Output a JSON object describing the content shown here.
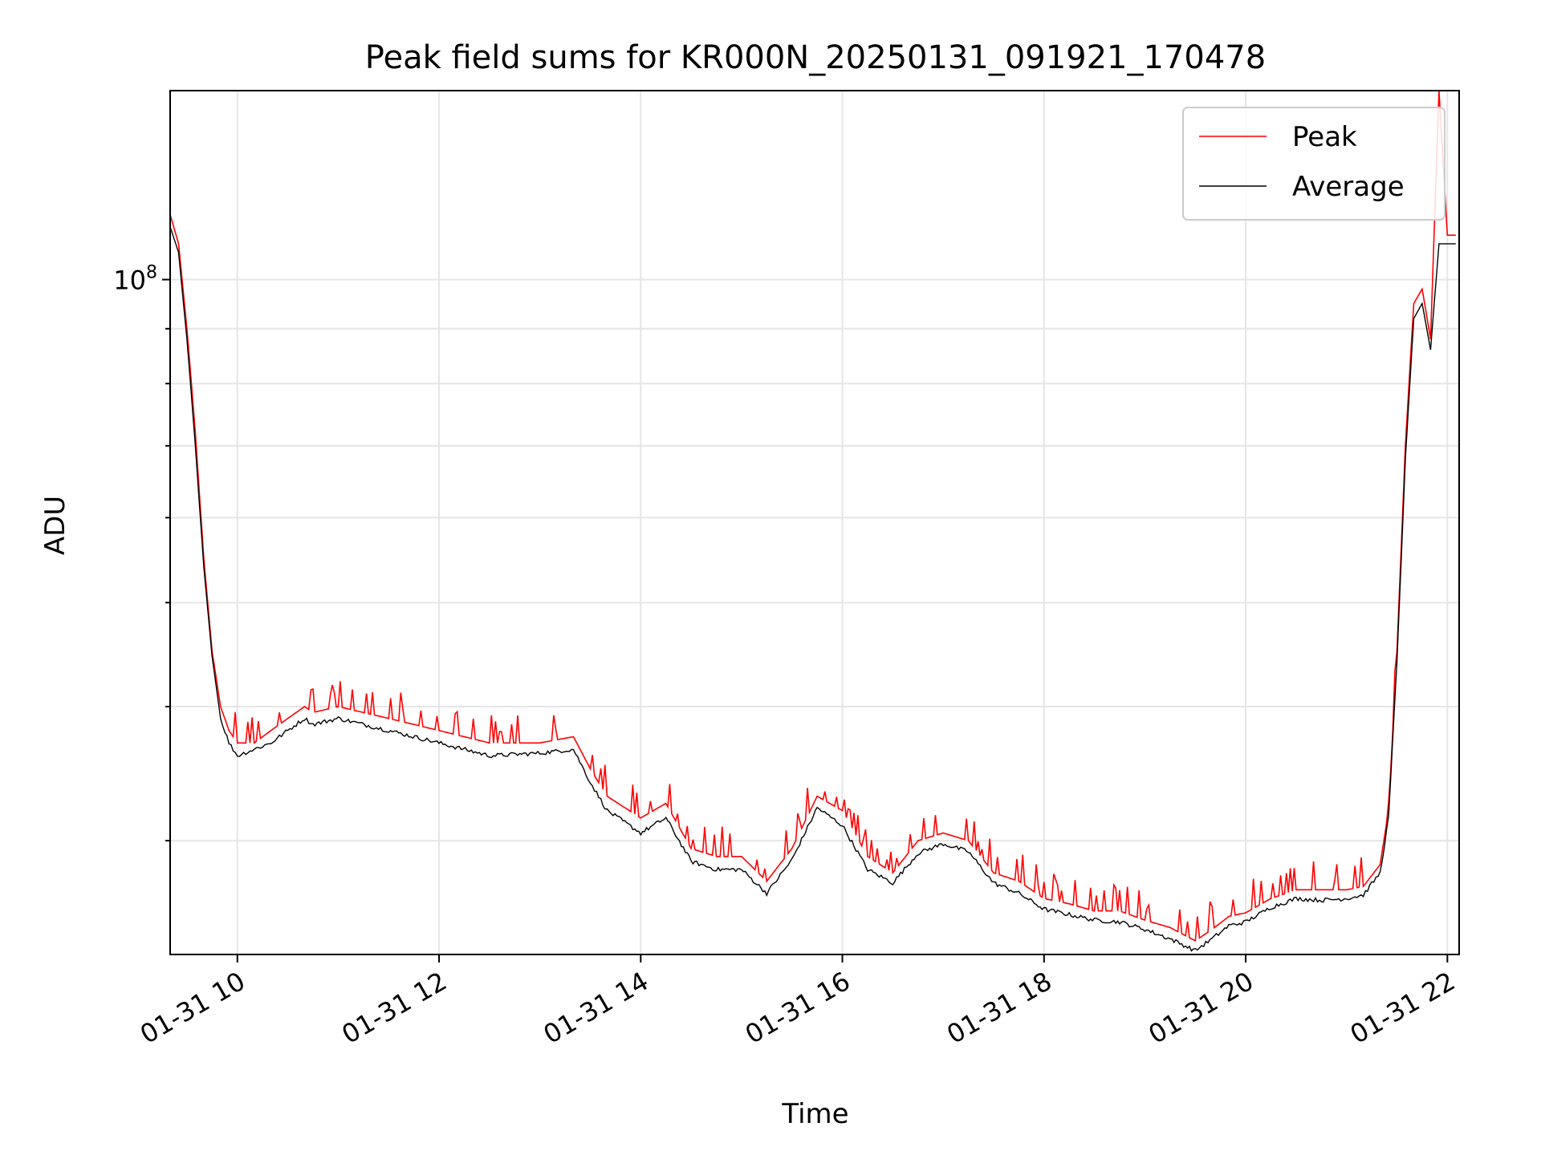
{
  "chart_data": {
    "type": "line",
    "title": "Peak field sums for KR000N_20250131_091921_170478",
    "xlabel": "Time",
    "ylabel": "ADU",
    "yscale": "log",
    "xlim": [
      "01-31 09:20",
      "01-31 22:07"
    ],
    "ylim": [
      23500000,
      150000000
    ],
    "grid": true,
    "legend_position": "top-right",
    "x_ticks": [
      "01-31 10",
      "01-31 12",
      "01-31 14",
      "01-31 16",
      "01-31 18",
      "01-31 20",
      "01-31 22"
    ],
    "y_ticks": [
      {
        "base": "10",
        "exp": "8",
        "value": 100000000
      }
    ],
    "series": [
      {
        "name": "Peak",
        "color": "#ff0000",
        "x": [
          "01-31 09:20",
          "01-31 09:25",
          "01-31 09:30",
          "01-31 09:35",
          "01-31 09:40",
          "01-31 09:45",
          "01-31 09:50",
          "01-31 09:55",
          "01-31 10:00",
          "01-31 10:10",
          "01-31 10:20",
          "01-31 10:30",
          "01-31 10:40",
          "01-31 10:45",
          "01-31 11:00",
          "01-31 11:30",
          "01-31 12:00",
          "01-31 12:30",
          "01-31 13:00",
          "01-31 13:20",
          "01-31 13:30",
          "01-31 13:40",
          "01-31 14:00",
          "01-31 14:15",
          "01-31 14:30",
          "01-31 14:45",
          "01-31 15:00",
          "01-31 15:15",
          "01-31 15:30",
          "01-31 15:45",
          "01-31 16:00",
          "01-31 16:15",
          "01-31 16:30",
          "01-31 16:45",
          "01-31 17:00",
          "01-31 17:15",
          "01-31 17:30",
          "01-31 17:45",
          "01-31 18:00",
          "01-31 18:15",
          "01-31 18:30",
          "01-31 18:45",
          "01-31 19:00",
          "01-31 19:15",
          "01-31 19:30",
          "01-31 19:40",
          "01-31 19:50",
          "01-31 20:00",
          "01-31 20:15",
          "01-31 20:30",
          "01-31 20:45",
          "01-31 21:00",
          "01-31 21:10",
          "01-31 21:20",
          "01-31 21:25",
          "01-31 21:30",
          "01-31 21:35",
          "01-31 21:40",
          "01-31 21:45",
          "01-31 21:50",
          "01-31 21:55",
          "01-31 22:00",
          "01-31 22:05"
        ],
        "values": [
          115000000,
          108000000,
          90000000,
          72000000,
          55000000,
          45000000,
          40000000,
          38000000,
          37000000,
          37000000,
          38000000,
          39000000,
          40000000,
          39500000,
          40000000,
          39000000,
          38000000,
          37000000,
          37000000,
          37500000,
          35000000,
          33000000,
          31500000,
          32500000,
          29500000,
          29000000,
          29000000,
          27500000,
          29500000,
          33000000,
          32000000,
          29000000,
          28000000,
          30000000,
          30500000,
          30000000,
          28000000,
          27500000,
          26500000,
          26200000,
          25800000,
          25800000,
          25300000,
          24900000,
          24200000,
          24800000,
          25500000,
          25700000,
          26500000,
          27000000,
          27000000,
          27000000,
          27200000,
          28500000,
          32000000,
          45000000,
          70000000,
          95000000,
          98000000,
          88000000,
          150000000,
          110000000,
          110000000
        ]
      },
      {
        "name": "Average",
        "color": "#000000",
        "x": [
          "01-31 09:20",
          "01-31 09:25",
          "01-31 09:30",
          "01-31 09:35",
          "01-31 09:40",
          "01-31 09:45",
          "01-31 09:50",
          "01-31 09:55",
          "01-31 10:00",
          "01-31 10:10",
          "01-31 10:20",
          "01-31 10:30",
          "01-31 10:40",
          "01-31 10:45",
          "01-31 11:00",
          "01-31 11:30",
          "01-31 12:00",
          "01-31 12:30",
          "01-31 13:00",
          "01-31 13:20",
          "01-31 13:30",
          "01-31 13:40",
          "01-31 14:00",
          "01-31 14:15",
          "01-31 14:30",
          "01-31 14:45",
          "01-31 15:00",
          "01-31 15:15",
          "01-31 15:30",
          "01-31 15:45",
          "01-31 16:00",
          "01-31 16:15",
          "01-31 16:30",
          "01-31 16:45",
          "01-31 17:00",
          "01-31 17:15",
          "01-31 17:30",
          "01-31 17:45",
          "01-31 18:00",
          "01-31 18:15",
          "01-31 18:30",
          "01-31 18:45",
          "01-31 19:00",
          "01-31 19:15",
          "01-31 19:30",
          "01-31 19:40",
          "01-31 19:50",
          "01-31 20:00",
          "01-31 20:15",
          "01-31 20:30",
          "01-31 20:45",
          "01-31 21:00",
          "01-31 21:10",
          "01-31 21:20",
          "01-31 21:25",
          "01-31 21:30",
          "01-31 21:35",
          "01-31 21:40",
          "01-31 21:45",
          "01-31 21:50",
          "01-31 21:55",
          "01-31 22:00",
          "01-31 22:05"
        ],
        "values": [
          112000000,
          106000000,
          88000000,
          70000000,
          54000000,
          44500000,
          39000000,
          37000000,
          36000000,
          36500000,
          37000000,
          38000000,
          39000000,
          38500000,
          39000000,
          38000000,
          37000000,
          36000000,
          36200000,
          36500000,
          34000000,
          32000000,
          30500000,
          31500000,
          28700000,
          28200000,
          28200000,
          26800000,
          28800000,
          32200000,
          31000000,
          28200000,
          27400000,
          29200000,
          29800000,
          29300000,
          27400000,
          26800000,
          25900000,
          25600000,
          25300000,
          25200000,
          24800000,
          24300000,
          23700000,
          24300000,
          25000000,
          25200000,
          26000000,
          26500000,
          26400000,
          26500000,
          26700000,
          28000000,
          31500000,
          44000000,
          68000000,
          92000000,
          95000000,
          86000000,
          108000000,
          108000000,
          108000000
        ]
      }
    ]
  }
}
